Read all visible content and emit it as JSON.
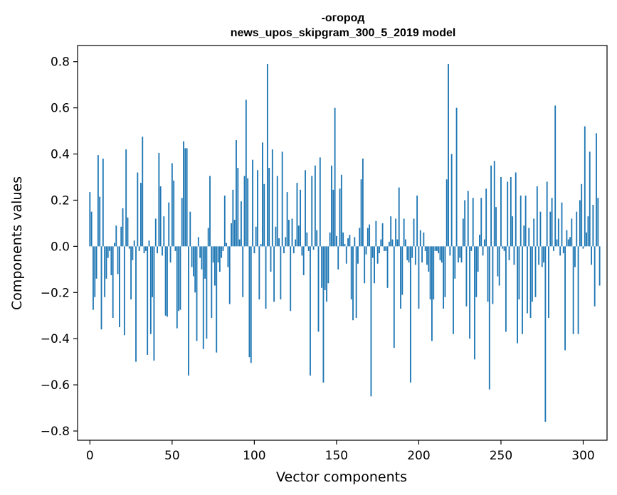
{
  "chart_data": {
    "type": "bar",
    "title_lines": [
      "-огород",
      "news_upos_skipgram_300_5_2019 model"
    ],
    "xlabel": "Vector components",
    "ylabel": "Components values",
    "xlim": [
      -7.5,
      314.5
    ],
    "ylim": [
      -0.84,
      0.87
    ],
    "x_ticks": [
      0,
      50,
      100,
      150,
      200,
      250,
      300
    ],
    "x_tick_labels": [
      "0",
      "50",
      "100",
      "150",
      "200",
      "250",
      "300"
    ],
    "y_ticks": [
      -0.8,
      -0.6,
      -0.4,
      -0.2,
      0.0,
      0.2,
      0.4,
      0.6,
      0.8
    ],
    "y_tick_labels": [
      "−0.8",
      "−0.6",
      "−0.4",
      "−0.2",
      "0.0",
      "0.2",
      "0.4",
      "0.6",
      "0.8"
    ],
    "bar_color": "#1f77b4",
    "grid": false,
    "values": [
      0.235,
      0.15,
      -0.275,
      -0.22,
      -0.14,
      0.395,
      0.215,
      -0.36,
      0.38,
      -0.22,
      -0.14,
      -0.05,
      -0.02,
      -0.125,
      -0.31,
      0.015,
      0.09,
      -0.12,
      -0.35,
      0.085,
      0.165,
      -0.385,
      0.42,
      0.125,
      -0.01,
      -0.23,
      -0.06,
      0.025,
      -0.5,
      0.32,
      -0.02,
      0.275,
      0.475,
      -0.03,
      -0.02,
      -0.47,
      0.025,
      -0.38,
      -0.22,
      -0.495,
      0.12,
      -0.03,
      0.405,
      0.26,
      -0.04,
      0.13,
      -0.3,
      -0.305,
      0.19,
      -0.07,
      0.36,
      0.285,
      -0.02,
      -0.355,
      -0.28,
      -0.275,
      0.21,
      0.455,
      0.425,
      0.425,
      -0.56,
      0.15,
      -0.09,
      -0.13,
      -0.2,
      -0.41,
      0.04,
      -0.05,
      -0.1,
      -0.445,
      -0.14,
      -0.4,
      0.08,
      0.305,
      -0.31,
      -0.07,
      -0.17,
      -0.46,
      -0.07,
      -0.11,
      -0.05,
      -0.02,
      0.22,
      0.015,
      -0.09,
      -0.25,
      0.1,
      0.245,
      0.115,
      0.46,
      0.34,
      0.03,
      0.195,
      -0.22,
      0.305,
      0.635,
      0.295,
      -0.48,
      -0.505,
      0.375,
      -0.03,
      0.085,
      0.33,
      -0.23,
      0.01,
      0.45,
      0.27,
      -0.27,
      0.79,
      0.34,
      -0.11,
      0.42,
      -0.24,
      0.085,
      0.305,
      0.035,
      -0.23,
      0.41,
      -0.03,
      0.04,
      0.235,
      0.115,
      -0.28,
      0.12,
      -0.03,
      0.03,
      0.275,
      0.09,
      0.245,
      -0.04,
      -0.125,
      0.33,
      0.06,
      -0.02,
      -0.56,
      0.305,
      -0.015,
      0.35,
      0.07,
      -0.37,
      0.385,
      -0.18,
      -0.59,
      -0.19,
      -0.24,
      -0.16,
      0.06,
      0.35,
      0.245,
      0.6,
      0.045,
      -0.1,
      0.25,
      0.31,
      0.06,
      0.01,
      -0.075,
      0.035,
      0.05,
      -0.23,
      -0.32,
      0.04,
      -0.31,
      -0.075,
      0.08,
      0.29,
      0.38,
      -0.16,
      -0.035,
      0.08,
      0.095,
      -0.65,
      -0.05,
      -0.16,
      0.11,
      -0.075,
      -0.03,
      0.03,
      0.1,
      -0.02,
      -0.02,
      -0.18,
      0.02,
      0.13,
      0.03,
      -0.44,
      0.12,
      0.03,
      0.255,
      -0.27,
      -0.21,
      0.12,
      0.03,
      -0.06,
      -0.07,
      -0.59,
      -0.05,
      0.12,
      -0.08,
      0.22,
      -0.27,
      0.07,
      -0.07,
      0.06,
      -0.02,
      -0.08,
      -0.11,
      -0.23,
      -0.41,
      -0.23,
      -0.02,
      -0.02,
      -0.03,
      -0.06,
      -0.07,
      -0.27,
      -0.22,
      0.29,
      0.79,
      -0.04,
      0.4,
      -0.38,
      -0.14,
      0.6,
      -0.07,
      -0.05,
      -0.07,
      0.12,
      0.2,
      -0.26,
      0.24,
      -0.4,
      -0.02,
      0.21,
      -0.49,
      -0.22,
      -0.11,
      0.05,
      0.21,
      -0.04,
      0.03,
      0.25,
      -0.24,
      -0.62,
      0.35,
      -0.25,
      0.37,
      0.17,
      -0.13,
      -0.17,
      0.3,
      -0.01,
      -0.02,
      -0.37,
      0.28,
      -0.06,
      0.3,
      0.13,
      -0.08,
      0.32,
      -0.42,
      -0.23,
      0.22,
      -0.38,
      0.09,
      0.22,
      -0.29,
      0.08,
      -0.31,
      -0.24,
      0.12,
      -0.22,
      0.26,
      -0.08,
      0.15,
      -0.09,
      -0.07,
      -0.76,
      0.28,
      -0.31,
      0.15,
      0.21,
      -0.02,
      0.61,
      0.03,
      0.12,
      -0.04,
      0.19,
      -0.03,
      -0.45,
      0.07,
      0.03,
      0.04,
      0.12,
      -0.38,
      -0.09,
      0.15,
      -0.38,
      0.2,
      0.27,
      -0.01,
      0.52,
      0.06,
      0.13,
      0.41,
      -0.08,
      0.18,
      -0.26,
      0.49,
      0.21,
      -0.17
    ]
  }
}
